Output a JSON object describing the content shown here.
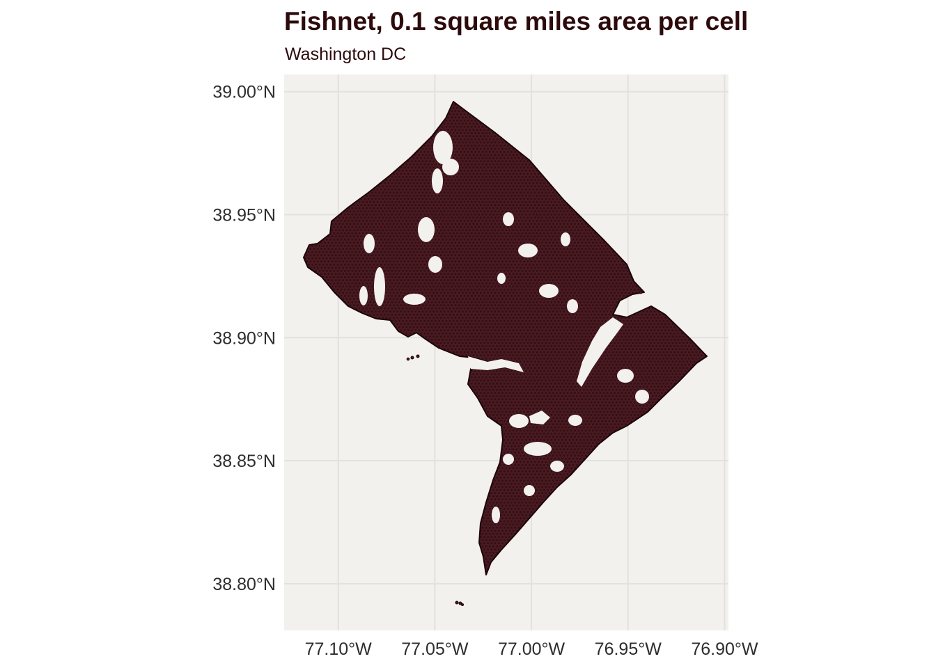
{
  "title": "Fishnet, 0.1 square miles area per cell",
  "subtitle": "Washington DC",
  "colors": {
    "panel_background": "#f3f1ee",
    "grid_line": "#e3e1de",
    "cell_fill": "#4a1a22",
    "cell_outline": "#1c0508",
    "text": "#2d0a0c"
  },
  "axes": {
    "x": {
      "ticks": [
        {
          "value": -77.1,
          "label": "77.10°W"
        },
        {
          "value": -77.05,
          "label": "77.05°W"
        },
        {
          "value": -77.0,
          "label": "77.00°W"
        },
        {
          "value": -76.95,
          "label": "76.95°W"
        },
        {
          "value": -76.9,
          "label": "76.90°W"
        }
      ],
      "range": [
        -77.128,
        -76.898
      ]
    },
    "y": {
      "ticks": [
        {
          "value": 38.8,
          "label": "38.80°N"
        },
        {
          "value": 38.85,
          "label": "38.85°N"
        },
        {
          "value": 38.9,
          "label": "38.90°N"
        },
        {
          "value": 38.95,
          "label": "38.95°N"
        },
        {
          "value": 39.0,
          "label": "39.00°N"
        }
      ],
      "range": [
        38.781,
        39.007
      ]
    },
    "grid": true
  },
  "map_layer": {
    "type": "hexagonal fishnet",
    "region_outline_lonlat": [
      [
        -77.04,
        38.995
      ],
      [
        -76.909,
        38.893
      ],
      [
        -77.039,
        38.791
      ],
      [
        -77.12,
        38.934
      ]
    ],
    "islands_lonlat": [
      [
        -77.0385,
        38.7935
      ]
    ]
  }
}
